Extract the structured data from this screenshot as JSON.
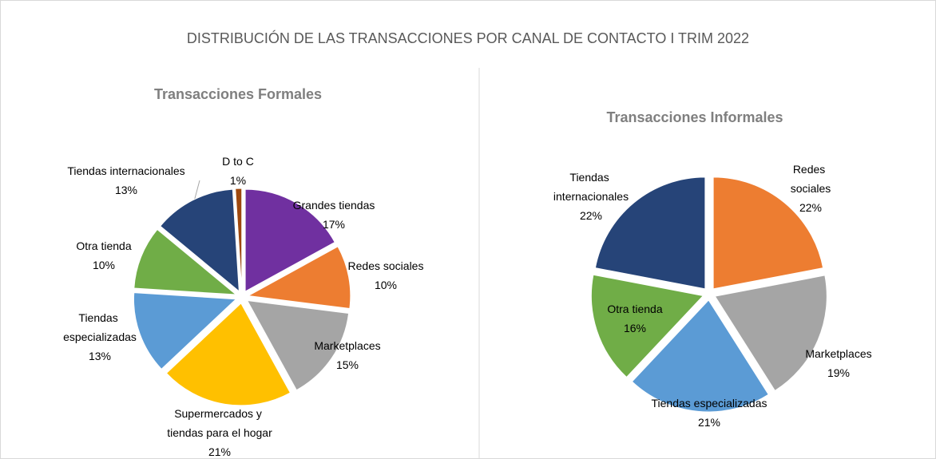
{
  "title": "DISTRIBUCIÓN DE LAS TRANSACCIONES  POR CANAL DE CONTACTO I TRIM 2022",
  "chart_data": [
    {
      "type": "pie",
      "title": "Transacciones Formales",
      "categories": [
        "Grandes tiendas",
        "Redes sociales",
        "Marketplaces",
        "Supermercados y tiendas para el hogar",
        "Tiendas especializadas",
        "Otra tienda",
        "Tiendas internacionales",
        "D to C"
      ],
      "values": [
        17,
        10,
        15,
        21,
        13,
        10,
        13,
        1
      ],
      "value_labels": [
        "17%",
        "10%",
        "15%",
        "21%",
        "13%",
        "10%",
        "13%",
        "1%"
      ],
      "colors": [
        "#7030a0",
        "#ed7d31",
        "#a5a5a5",
        "#ffc000",
        "#5b9bd5",
        "#70ad47",
        "#264478",
        "#9e480e"
      ]
    },
    {
      "type": "pie",
      "title": "Transacciones Informales",
      "categories": [
        "Redes sociales",
        "Marketplaces",
        "Tiendas especializadas",
        "Otra tienda",
        "Tiendas internacionales"
      ],
      "values": [
        22,
        19,
        21,
        16,
        22
      ],
      "value_labels": [
        "22%",
        "19%",
        "21%",
        "16%",
        "22%"
      ],
      "colors": [
        "#ed7d31",
        "#a5a5a5",
        "#5b9bd5",
        "#70ad47",
        "#264478"
      ]
    }
  ]
}
